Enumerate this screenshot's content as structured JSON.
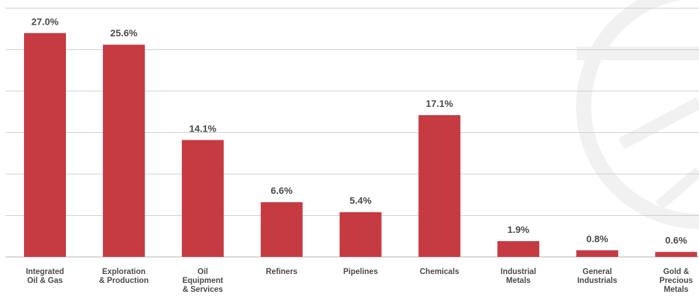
{
  "chart_data": {
    "type": "bar",
    "title": "",
    "xlabel": "",
    "ylabel": "",
    "unit": "%",
    "ylim": [
      0,
      30
    ],
    "grid": true,
    "legend": "none",
    "categories": [
      [
        "Integrated",
        "Oil & Gas"
      ],
      [
        "Exploration",
        "& Production"
      ],
      [
        "Oil",
        "Equipment",
        "& Services"
      ],
      [
        "Refiners"
      ],
      [
        "Pipelines"
      ],
      [
        "Chemicals"
      ],
      [
        "Industrial",
        "Metals"
      ],
      [
        "General",
        "Industrials"
      ],
      [
        "Gold &",
        "Precious",
        "Metals"
      ]
    ],
    "values": [
      27.0,
      25.6,
      14.1,
      6.6,
      5.4,
      17.1,
      1.9,
      0.8,
      0.6
    ],
    "data_labels": [
      "27.0%",
      "25.6%",
      "14.1%",
      "6.6%",
      "5.4%",
      "17.1%",
      "1.9%",
      "0.8%",
      "0.6%"
    ]
  },
  "colors": {
    "bar": "#c63a42",
    "grid": "#cccccc",
    "axis": "#bfbfbf",
    "text": "#4a4a4a",
    "watermark": "#f1f1f1"
  }
}
